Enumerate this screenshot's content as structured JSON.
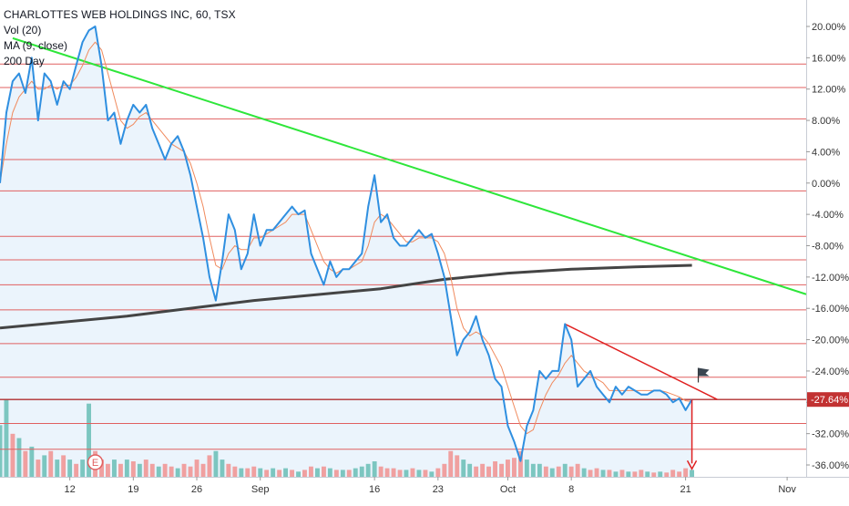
{
  "legend": {
    "title": "CHARLOTTES WEB HOLDINGS INC, 60, TSX",
    "volume": "Vol (20)",
    "ma": "MA (9, close)",
    "ma200": "200 Day"
  },
  "colors": {
    "price": "#2f8fe0",
    "ma": "#f08a5d",
    "ma200": "#444444",
    "downtrend": "#2ee63a",
    "level": "#e06060",
    "short_trend": "#e02020",
    "arrow": "#e02020",
    "badge": "#e06060",
    "vol_up": "#7cc6c0",
    "vol_down": "#f0a0a0",
    "area_fill": "#e6f1fb",
    "axis_text": "#333333"
  },
  "chart_data": {
    "type": "line",
    "y_axis": {
      "unit": "percent",
      "ticks": [
        "20.00%",
        "16.00%",
        "12.00%",
        "8.00%",
        "4.00%",
        "0.00%",
        "-4.00%",
        "-8.00%",
        "-12.00%",
        "-16.00%",
        "-20.00%",
        "-24.00%",
        "-28.00%",
        "-32.00%",
        "-36.00%"
      ],
      "tick_values": [
        20,
        16,
        12,
        8,
        4,
        0,
        -4,
        -8,
        -12,
        -16,
        -20,
        -24,
        -28,
        -32,
        -36
      ],
      "ylim": [
        -37,
        22
      ],
      "current_label": "-27.64%",
      "current_value": -27.64
    },
    "x_axis": {
      "ticks": [
        "12",
        "19",
        "26",
        "Sep",
        "16",
        "23",
        "Oct",
        "8",
        "21",
        "Nov"
      ],
      "tick_index": [
        11,
        21,
        31,
        41,
        59,
        69,
        80,
        90,
        108,
        124
      ],
      "xlim": [
        0,
        127
      ]
    },
    "price_series": [
      [
        0,
        0
      ],
      [
        1,
        9
      ],
      [
        2,
        13
      ],
      [
        3,
        14
      ],
      [
        4,
        11.5
      ],
      [
        5,
        16
      ],
      [
        6,
        8
      ],
      [
        7,
        14
      ],
      [
        8,
        13
      ],
      [
        9,
        10
      ],
      [
        10,
        13
      ],
      [
        11,
        12
      ],
      [
        12,
        15
      ],
      [
        13,
        18
      ],
      [
        14,
        19.5
      ],
      [
        15,
        20
      ],
      [
        16,
        15
      ],
      [
        17,
        8
      ],
      [
        18,
        9
      ],
      [
        19,
        5
      ],
      [
        20,
        8
      ],
      [
        21,
        10
      ],
      [
        22,
        9
      ],
      [
        23,
        10
      ],
      [
        24,
        7
      ],
      [
        25,
        5
      ],
      [
        26,
        3
      ],
      [
        27,
        5
      ],
      [
        28,
        6
      ],
      [
        29,
        4
      ],
      [
        30,
        1
      ],
      [
        31,
        -3
      ],
      [
        32,
        -7
      ],
      [
        33,
        -12
      ],
      [
        34,
        -15
      ],
      [
        35,
        -10
      ],
      [
        36,
        -4
      ],
      [
        37,
        -6
      ],
      [
        38,
        -11
      ],
      [
        39,
        -9
      ],
      [
        40,
        -4
      ],
      [
        41,
        -8
      ],
      [
        42,
        -6
      ],
      [
        43,
        -6
      ],
      [
        44,
        -5
      ],
      [
        45,
        -4
      ],
      [
        46,
        -3
      ],
      [
        47,
        -4
      ],
      [
        48,
        -3.5
      ],
      [
        49,
        -9
      ],
      [
        50,
        -11
      ],
      [
        51,
        -13
      ],
      [
        52,
        -10
      ],
      [
        53,
        -12
      ],
      [
        54,
        -11
      ],
      [
        55,
        -11
      ],
      [
        56,
        -10
      ],
      [
        57,
        -9
      ],
      [
        58,
        -3
      ],
      [
        59,
        1
      ],
      [
        60,
        -5
      ],
      [
        61,
        -4
      ],
      [
        62,
        -7
      ],
      [
        63,
        -8
      ],
      [
        64,
        -8
      ],
      [
        65,
        -7
      ],
      [
        66,
        -6
      ],
      [
        67,
        -7
      ],
      [
        68,
        -6.5
      ],
      [
        69,
        -9
      ],
      [
        70,
        -12
      ],
      [
        71,
        -17
      ],
      [
        72,
        -22
      ],
      [
        73,
        -20
      ],
      [
        74,
        -19
      ],
      [
        75,
        -17
      ],
      [
        76,
        -20
      ],
      [
        77,
        -22
      ],
      [
        78,
        -25
      ],
      [
        79,
        -26
      ],
      [
        80,
        -31
      ],
      [
        81,
        -33
      ],
      [
        82,
        -35.5
      ],
      [
        83,
        -31
      ],
      [
        84,
        -29
      ],
      [
        85,
        -24
      ],
      [
        86,
        -25
      ],
      [
        87,
        -24
      ],
      [
        88,
        -24
      ],
      [
        89,
        -18
      ],
      [
        90,
        -20
      ],
      [
        91,
        -26
      ],
      [
        92,
        -25
      ],
      [
        93,
        -24
      ],
      [
        94,
        -26
      ],
      [
        95,
        -27
      ],
      [
        96,
        -28
      ],
      [
        97,
        -26
      ],
      [
        98,
        -27
      ],
      [
        99,
        -26
      ],
      [
        100,
        -26.5
      ],
      [
        101,
        -27
      ],
      [
        102,
        -27
      ],
      [
        103,
        -26.5
      ],
      [
        104,
        -26.5
      ],
      [
        105,
        -27
      ],
      [
        106,
        -28
      ],
      [
        107,
        -27.5
      ],
      [
        108,
        -29
      ],
      [
        109,
        -27.64
      ]
    ],
    "ma_series": [
      [
        0,
        0
      ],
      [
        1,
        5
      ],
      [
        2,
        9
      ],
      [
        3,
        11
      ],
      [
        4,
        12
      ],
      [
        5,
        13
      ],
      [
        6,
        12
      ],
      [
        7,
        12
      ],
      [
        8,
        12.5
      ],
      [
        9,
        12
      ],
      [
        10,
        12.5
      ],
      [
        11,
        12.5
      ],
      [
        12,
        13.5
      ],
      [
        13,
        15
      ],
      [
        14,
        17
      ],
      [
        15,
        18
      ],
      [
        16,
        17
      ],
      [
        17,
        14
      ],
      [
        18,
        11
      ],
      [
        19,
        8
      ],
      [
        20,
        7
      ],
      [
        21,
        7.5
      ],
      [
        22,
        8.5
      ],
      [
        23,
        9
      ],
      [
        24,
        8
      ],
      [
        25,
        7
      ],
      [
        26,
        6
      ],
      [
        27,
        5
      ],
      [
        28,
        4.5
      ],
      [
        29,
        4
      ],
      [
        30,
        2.5
      ],
      [
        31,
        0
      ],
      [
        32,
        -3
      ],
      [
        33,
        -7
      ],
      [
        34,
        -10.5
      ],
      [
        35,
        -11
      ],
      [
        36,
        -9
      ],
      [
        37,
        -8
      ],
      [
        38,
        -8.5
      ],
      [
        39,
        -8.5
      ],
      [
        40,
        -7
      ],
      [
        41,
        -7
      ],
      [
        42,
        -6.5
      ],
      [
        43,
        -6
      ],
      [
        44,
        -5.5
      ],
      [
        45,
        -5
      ],
      [
        46,
        -4
      ],
      [
        47,
        -4
      ],
      [
        48,
        -4
      ],
      [
        49,
        -6
      ],
      [
        50,
        -8
      ],
      [
        51,
        -10
      ],
      [
        52,
        -11
      ],
      [
        53,
        -11.5
      ],
      [
        54,
        -11
      ],
      [
        55,
        -11
      ],
      [
        56,
        -10.5
      ],
      [
        57,
        -10
      ],
      [
        58,
        -8
      ],
      [
        59,
        -5
      ],
      [
        60,
        -4
      ],
      [
        61,
        -4.5
      ],
      [
        62,
        -5.5
      ],
      [
        63,
        -6.5
      ],
      [
        64,
        -7.5
      ],
      [
        65,
        -7.5
      ],
      [
        66,
        -7
      ],
      [
        67,
        -7
      ],
      [
        68,
        -7
      ],
      [
        69,
        -7.5
      ],
      [
        70,
        -9
      ],
      [
        71,
        -12
      ],
      [
        72,
        -16
      ],
      [
        73,
        -18.5
      ],
      [
        74,
        -19.5
      ],
      [
        75,
        -19
      ],
      [
        76,
        -19.5
      ],
      [
        77,
        -20.5
      ],
      [
        78,
        -22
      ],
      [
        79,
        -23.5
      ],
      [
        80,
        -26
      ],
      [
        81,
        -28.5
      ],
      [
        82,
        -31
      ],
      [
        83,
        -32
      ],
      [
        84,
        -31.5
      ],
      [
        85,
        -29
      ],
      [
        86,
        -27
      ],
      [
        87,
        -25.5
      ],
      [
        88,
        -24.5
      ],
      [
        89,
        -23
      ],
      [
        90,
        -22
      ],
      [
        91,
        -23
      ],
      [
        92,
        -24
      ],
      [
        93,
        -24.5
      ],
      [
        94,
        -25
      ],
      [
        95,
        -25.5
      ],
      [
        96,
        -26.5
      ],
      [
        97,
        -26.5
      ],
      [
        98,
        -26.5
      ],
      [
        99,
        -26.5
      ],
      [
        100,
        -26.5
      ],
      [
        101,
        -26.5
      ],
      [
        102,
        -26.5
      ],
      [
        103,
        -26.5
      ],
      [
        104,
        -26.5
      ],
      [
        105,
        -26.7
      ],
      [
        106,
        -27
      ],
      [
        107,
        -27.3
      ],
      [
        108,
        -27.8
      ],
      [
        109,
        -27.9
      ]
    ],
    "ma200_series": [
      [
        0,
        -18.5
      ],
      [
        20,
        -17
      ],
      [
        40,
        -15
      ],
      [
        60,
        -13.5
      ],
      [
        70,
        -12.3
      ],
      [
        80,
        -11.5
      ],
      [
        90,
        -11
      ],
      [
        100,
        -10.7
      ],
      [
        109,
        -10.5
      ]
    ],
    "horizontal_levels": [
      15.2,
      12.2,
      8.2,
      3,
      -1,
      -6.8,
      -9.8,
      -13,
      -16.2,
      -20.5,
      -24.8,
      -27.64,
      -30.7,
      -34
    ],
    "trendlines": {
      "green_downtrend": [
        [
          2,
          18.5
        ],
        [
          127,
          -14.2
        ]
      ],
      "red_short_downtrend": [
        [
          89,
          -18
        ],
        [
          113,
          -27.64
        ]
      ]
    },
    "arrow": {
      "index": 109,
      "from": -27.64,
      "to": -36.5
    },
    "flag_marker": {
      "index": 110,
      "value": -24.3
    },
    "earnings_marker": {
      "index": 15,
      "label": "E"
    },
    "volume": {
      "max_height_percent_of_axis": 11,
      "bars": [
        [
          0,
          0.6,
          1
        ],
        [
          1,
          0.9,
          1
        ],
        [
          2,
          0.5,
          0
        ],
        [
          3,
          0.45,
          1
        ],
        [
          4,
          0.3,
          0
        ],
        [
          5,
          0.35,
          1
        ],
        [
          6,
          0.2,
          0
        ],
        [
          7,
          0.25,
          1
        ],
        [
          8,
          0.3,
          0
        ],
        [
          9,
          0.2,
          1
        ],
        [
          10,
          0.25,
          0
        ],
        [
          11,
          0.2,
          1
        ],
        [
          12,
          0.15,
          0
        ],
        [
          13,
          0.2,
          1
        ],
        [
          14,
          0.85,
          1
        ],
        [
          15,
          0.3,
          0
        ],
        [
          16,
          0.2,
          0
        ],
        [
          17,
          0.15,
          0
        ],
        [
          18,
          0.2,
          1
        ],
        [
          19,
          0.15,
          0
        ],
        [
          20,
          0.2,
          1
        ],
        [
          21,
          0.18,
          0
        ],
        [
          22,
          0.15,
          1
        ],
        [
          23,
          0.2,
          0
        ],
        [
          24,
          0.15,
          0
        ],
        [
          25,
          0.12,
          1
        ],
        [
          26,
          0.15,
          0
        ],
        [
          27,
          0.12,
          0
        ],
        [
          28,
          0.1,
          1
        ],
        [
          29,
          0.15,
          0
        ],
        [
          30,
          0.12,
          0
        ],
        [
          31,
          0.2,
          0
        ],
        [
          32,
          0.15,
          0
        ],
        [
          33,
          0.25,
          0
        ],
        [
          34,
          0.3,
          1
        ],
        [
          35,
          0.2,
          1
        ],
        [
          36,
          0.15,
          0
        ],
        [
          37,
          0.12,
          0
        ],
        [
          38,
          0.1,
          1
        ],
        [
          39,
          0.1,
          0
        ],
        [
          40,
          0.12,
          0
        ],
        [
          41,
          0.1,
          1
        ],
        [
          42,
          0.08,
          0
        ],
        [
          43,
          0.1,
          1
        ],
        [
          44,
          0.08,
          0
        ],
        [
          45,
          0.1,
          1
        ],
        [
          46,
          0.08,
          0
        ],
        [
          47,
          0.06,
          1
        ],
        [
          48,
          0.08,
          0
        ],
        [
          49,
          0.12,
          0
        ],
        [
          50,
          0.1,
          1
        ],
        [
          51,
          0.12,
          0
        ],
        [
          52,
          0.1,
          1
        ],
        [
          53,
          0.08,
          0
        ],
        [
          54,
          0.08,
          1
        ],
        [
          55,
          0.08,
          0
        ],
        [
          56,
          0.1,
          1
        ],
        [
          57,
          0.12,
          1
        ],
        [
          58,
          0.15,
          1
        ],
        [
          59,
          0.18,
          1
        ],
        [
          60,
          0.12,
          0
        ],
        [
          61,
          0.1,
          0
        ],
        [
          62,
          0.1,
          0
        ],
        [
          63,
          0.08,
          0
        ],
        [
          64,
          0.08,
          1
        ],
        [
          65,
          0.1,
          0
        ],
        [
          66,
          0.08,
          1
        ],
        [
          67,
          0.08,
          0
        ],
        [
          68,
          0.06,
          1
        ],
        [
          69,
          0.1,
          0
        ],
        [
          70,
          0.15,
          0
        ],
        [
          71,
          0.3,
          0
        ],
        [
          72,
          0.25,
          0
        ],
        [
          73,
          0.2,
          1
        ],
        [
          74,
          0.15,
          1
        ],
        [
          75,
          0.12,
          0
        ],
        [
          76,
          0.15,
          0
        ],
        [
          77,
          0.12,
          0
        ],
        [
          78,
          0.18,
          0
        ],
        [
          79,
          0.15,
          0
        ],
        [
          80,
          0.2,
          0
        ],
        [
          81,
          0.22,
          0
        ],
        [
          82,
          0.3,
          0
        ],
        [
          83,
          0.2,
          1
        ],
        [
          84,
          0.15,
          1
        ],
        [
          85,
          0.15,
          1
        ],
        [
          86,
          0.12,
          0
        ],
        [
          87,
          0.1,
          1
        ],
        [
          88,
          0.12,
          0
        ],
        [
          89,
          0.15,
          1
        ],
        [
          90,
          0.12,
          0
        ],
        [
          91,
          0.15,
          0
        ],
        [
          92,
          0.1,
          1
        ],
        [
          93,
          0.08,
          0
        ],
        [
          94,
          0.1,
          0
        ],
        [
          95,
          0.08,
          1
        ],
        [
          96,
          0.08,
          0
        ],
        [
          97,
          0.06,
          1
        ],
        [
          98,
          0.08,
          0
        ],
        [
          99,
          0.06,
          1
        ],
        [
          100,
          0.06,
          0
        ],
        [
          101,
          0.08,
          0
        ],
        [
          102,
          0.06,
          1
        ],
        [
          103,
          0.05,
          0
        ],
        [
          104,
          0.06,
          1
        ],
        [
          105,
          0.05,
          0
        ],
        [
          106,
          0.08,
          0
        ],
        [
          107,
          0.06,
          0
        ],
        [
          108,
          0.1,
          0
        ],
        [
          109,
          0.08,
          1
        ]
      ]
    },
    "grid": false,
    "legend_position": "top-left"
  }
}
